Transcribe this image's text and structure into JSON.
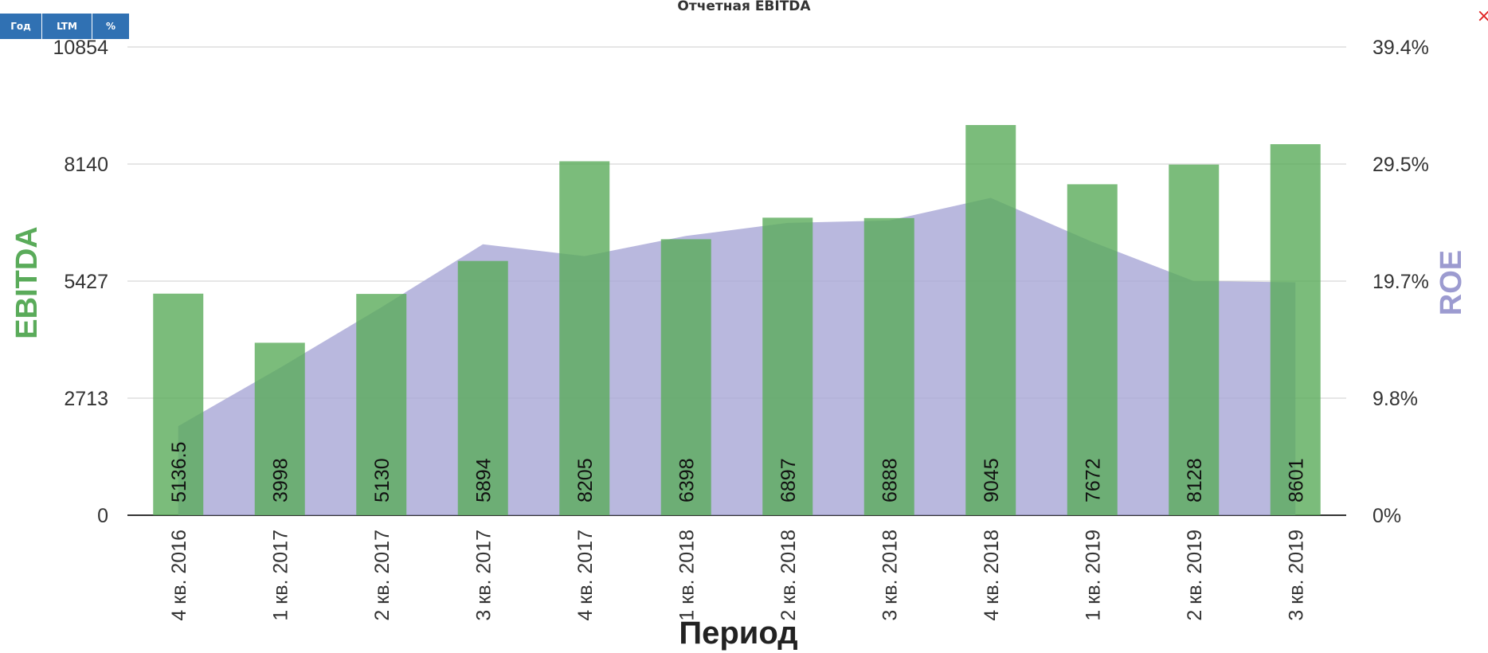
{
  "toolbar": {
    "buttons": [
      {
        "label": "Год"
      },
      {
        "label": "LTM"
      },
      {
        "label": "%"
      }
    ]
  },
  "close_icon": "close-icon",
  "close_glyph": "×",
  "colors": {
    "ebitda": "#5aab5a",
    "roe": "#a7a6d6",
    "grid": "#cccccc",
    "button": "#3071b3",
    "close": "#e02020"
  },
  "chart_data": {
    "type": "bar",
    "title": "Отчетная EBITDA",
    "xlabel": "Период",
    "ylabel_left": "EBITDA",
    "ylabel_right": "ROE",
    "categories": [
      "4 кв. 2016",
      "1 кв. 2017",
      "2 кв. 2017",
      "3 кв. 2017",
      "4 кв. 2017",
      "1 кв. 2018",
      "2 кв. 2018",
      "3 кв. 2018",
      "4 кв. 2018",
      "1 кв. 2019",
      "2 кв. 2019",
      "3 кв. 2019"
    ],
    "series": [
      {
        "name": "EBITDA",
        "type": "bar",
        "axis": "left",
        "values": [
          5136.5,
          3998,
          5130,
          5894,
          8205,
          6398,
          6897,
          6888,
          9045,
          7672,
          8128,
          8601
        ],
        "labels": [
          "5136.5",
          "3998",
          "5130",
          "5894",
          "8205",
          "6398",
          "6897",
          "6888",
          "9045",
          "7672",
          "8128",
          "8601"
        ]
      },
      {
        "name": "ROE",
        "type": "area",
        "axis": "right",
        "unit": "%",
        "values": [
          7.5,
          12.4,
          17.5,
          22.8,
          21.8,
          23.5,
          24.6,
          24.8,
          26.7,
          23.0,
          19.7,
          19.6
        ]
      }
    ],
    "ylim_left": [
      0,
      10854
    ],
    "yticks_left": [
      "0",
      "2713",
      "5427",
      "8140",
      "10854"
    ],
    "ylim_right": [
      0,
      39.4
    ],
    "yticks_right": [
      "0%",
      "9.8%",
      "19.7%",
      "29.5%",
      "39.4%"
    ],
    "grid": true,
    "legend": "none"
  }
}
